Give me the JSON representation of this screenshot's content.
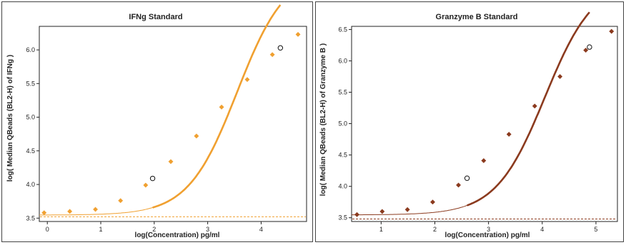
{
  "chart_data": [
    {
      "type": "scatter",
      "title": "IFNg Standard",
      "xlabel": "log(Concentration) pg/ml",
      "ylabel": "log( Median QBeads (BL2-H) of IFNg )",
      "xlim": [
        -0.15,
        4.85
      ],
      "ylim": [
        3.45,
        6.35
      ],
      "xticks": [
        0,
        1,
        2,
        3,
        4
      ],
      "yticks": [
        3.5,
        4.0,
        4.5,
        5.0,
        5.5,
        6.0
      ],
      "xtick_labels": [
        "0",
        "1",
        "2",
        "3",
        "4"
      ],
      "ytick_labels": [
        "3.5",
        "4.0",
        "4.5",
        "5.0",
        "5.5",
        "6.0"
      ],
      "grid": false,
      "color": "#f0a030",
      "baseline": 3.52,
      "series": [
        {
          "points": [
            {
              "x": -0.06,
              "y": 3.58
            },
            {
              "x": 0.42,
              "y": 3.6
            },
            {
              "x": 0.9,
              "y": 3.63
            },
            {
              "x": 1.37,
              "y": 3.76
            },
            {
              "x": 1.84,
              "y": 3.99
            },
            {
              "x": 2.31,
              "y": 4.34
            },
            {
              "x": 2.79,
              "y": 4.72
            },
            {
              "x": 3.26,
              "y": 5.15
            },
            {
              "x": 3.74,
              "y": 5.56
            },
            {
              "x": 4.21,
              "y": 5.93
            },
            {
              "x": 4.69,
              "y": 6.23
            }
          ],
          "open_points": [
            {
              "x": 1.97,
              "y": 4.09
            },
            {
              "x": 4.36,
              "y": 6.03
            }
          ],
          "fit": {
            "a": 3.545,
            "d": 7.2,
            "c": 3.55,
            "b": 0.95
          },
          "fit_thick_range": [
            1.97,
            4.36
          ]
        }
      ]
    },
    {
      "type": "scatter",
      "title": "Granzyme B Standard",
      "xlabel": "log(Concentration) pg/ml",
      "ylabel": "log( Median QBeads (BL2-H) of Granzyme B )",
      "xlim": [
        0.45,
        5.4
      ],
      "ylim": [
        3.44,
        6.55
      ],
      "xticks": [
        1,
        2,
        3,
        4,
        5
      ],
      "yticks": [
        3.5,
        4.0,
        4.5,
        5.0,
        5.5,
        6.0,
        6.5
      ],
      "xtick_labels": [
        "1",
        "2",
        "3",
        "4",
        "5"
      ],
      "ytick_labels": [
        "3.5",
        "4.0",
        "4.5",
        "5.0",
        "5.5",
        "6.0",
        "6.5"
      ],
      "grid": false,
      "color": "#8b3a1e",
      "baseline": 3.48,
      "series": [
        {
          "points": [
            {
              "x": 0.55,
              "y": 3.55
            },
            {
              "x": 1.02,
              "y": 3.6
            },
            {
              "x": 1.49,
              "y": 3.63
            },
            {
              "x": 1.96,
              "y": 3.75
            },
            {
              "x": 2.44,
              "y": 4.02
            },
            {
              "x": 2.91,
              "y": 4.41
            },
            {
              "x": 3.38,
              "y": 4.83
            },
            {
              "x": 3.86,
              "y": 5.28
            },
            {
              "x": 4.33,
              "y": 5.75
            },
            {
              "x": 4.81,
              "y": 6.17
            },
            {
              "x": 5.29,
              "y": 6.47
            }
          ],
          "open_points": [
            {
              "x": 2.6,
              "y": 4.13
            },
            {
              "x": 4.88,
              "y": 6.22
            }
          ],
          "fit": {
            "a": 3.545,
            "d": 7.3,
            "c": 4.05,
            "b": 0.95
          },
          "fit_thick_range": [
            2.6,
            4.88
          ]
        }
      ]
    }
  ]
}
